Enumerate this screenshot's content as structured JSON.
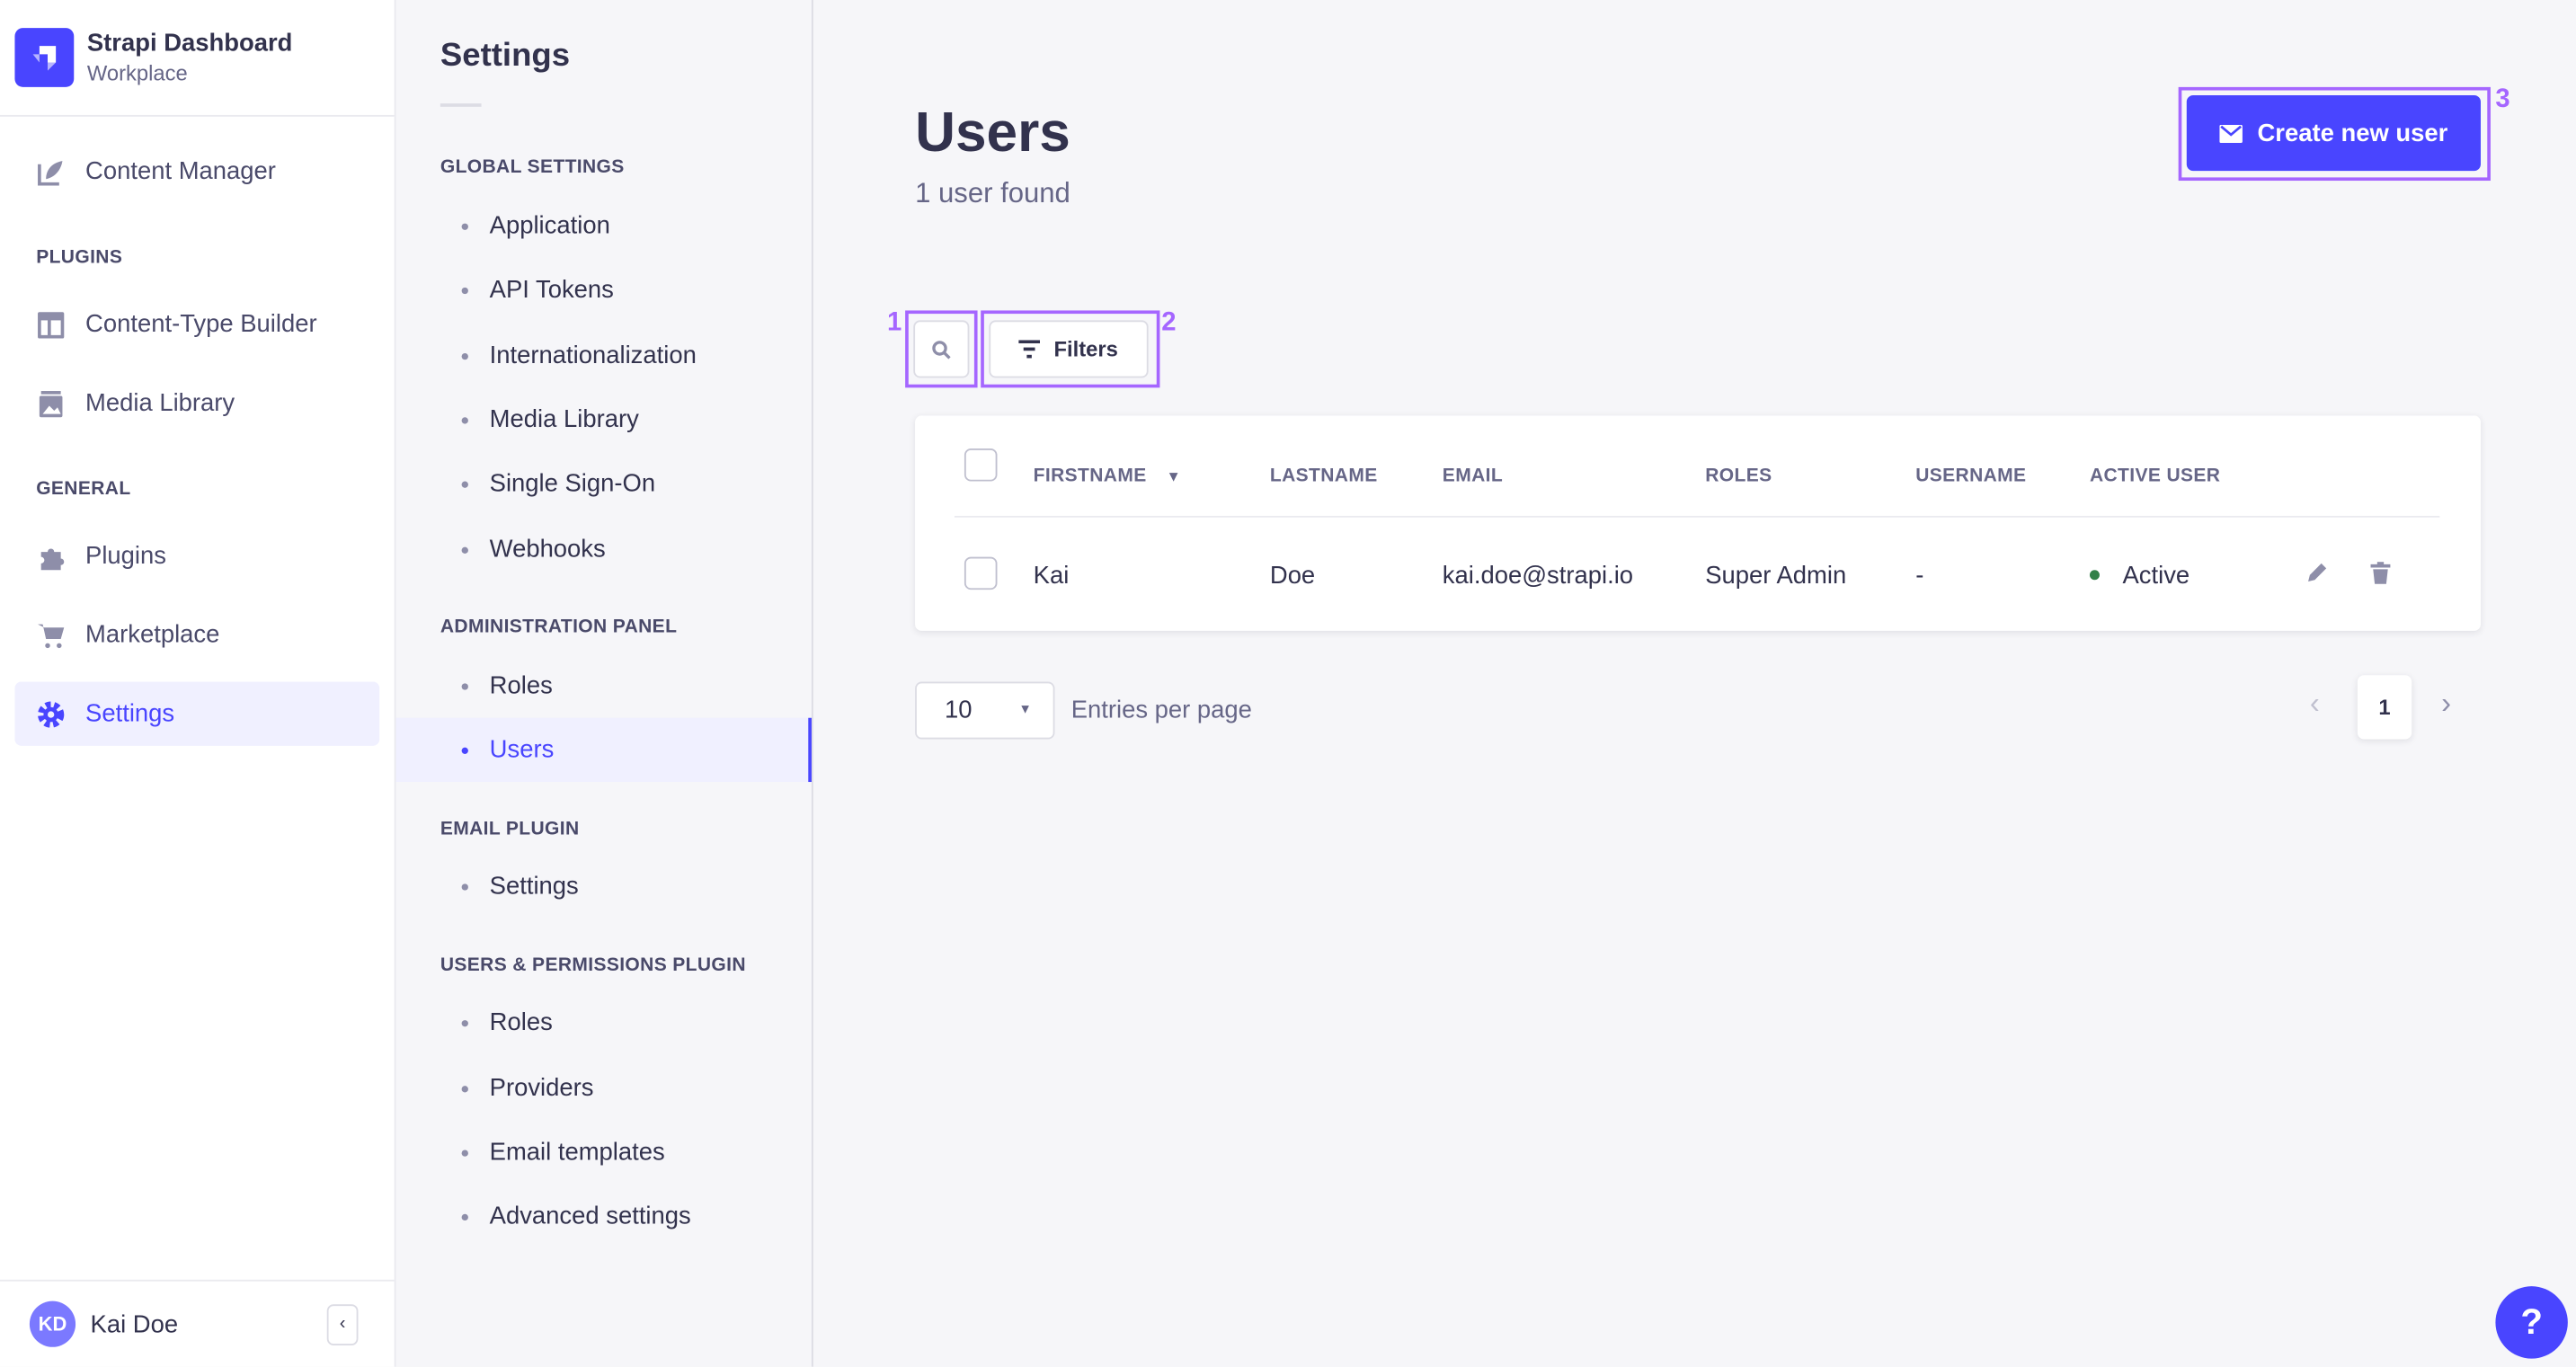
{
  "brand": {
    "title": "Strapi Dashboard",
    "subtitle": "Workplace"
  },
  "nav": {
    "content_manager": "Content Manager",
    "plugins_heading": "PLUGINS",
    "plugins": [
      "Content-Type Builder",
      "Media Library"
    ],
    "general_heading": "GENERAL",
    "general": [
      "Plugins",
      "Marketplace",
      "Settings"
    ],
    "active": "Settings",
    "user": {
      "initials": "KD",
      "name": "Kai Doe"
    }
  },
  "settings_nav": {
    "title": "Settings",
    "sections": [
      {
        "heading": "GLOBAL SETTINGS",
        "items": [
          "Application",
          "API Tokens",
          "Internationalization",
          "Media Library",
          "Single Sign-On",
          "Webhooks"
        ]
      },
      {
        "heading": "ADMINISTRATION PANEL",
        "items": [
          "Roles",
          "Users"
        ]
      },
      {
        "heading": "EMAIL PLUGIN",
        "items": [
          "Settings"
        ]
      },
      {
        "heading": "USERS & PERMISSIONS PLUGIN",
        "items": [
          "Roles",
          "Providers",
          "Email templates",
          "Advanced settings"
        ]
      }
    ],
    "active": "Users"
  },
  "main": {
    "title": "Users",
    "count": "1 user found",
    "create_button": "Create new user",
    "filters_button": "Filters",
    "table": {
      "columns": [
        "FIRSTNAME",
        "LASTNAME",
        "EMAIL",
        "ROLES",
        "USERNAME",
        "ACTIVE USER"
      ],
      "rows": [
        {
          "firstname": "Kai",
          "lastname": "Doe",
          "email": "kai.doe@strapi.io",
          "roles": "Super Admin",
          "username": "-",
          "active": "Active"
        }
      ]
    },
    "page_size": "10",
    "entries_label": "Entries per page",
    "current_page": "1"
  },
  "annotations": [
    "1",
    "2",
    "3"
  ],
  "help": "?",
  "colors": {
    "accent": "#4945ff",
    "annotation": "#a566ff",
    "active_dot": "#328048"
  }
}
